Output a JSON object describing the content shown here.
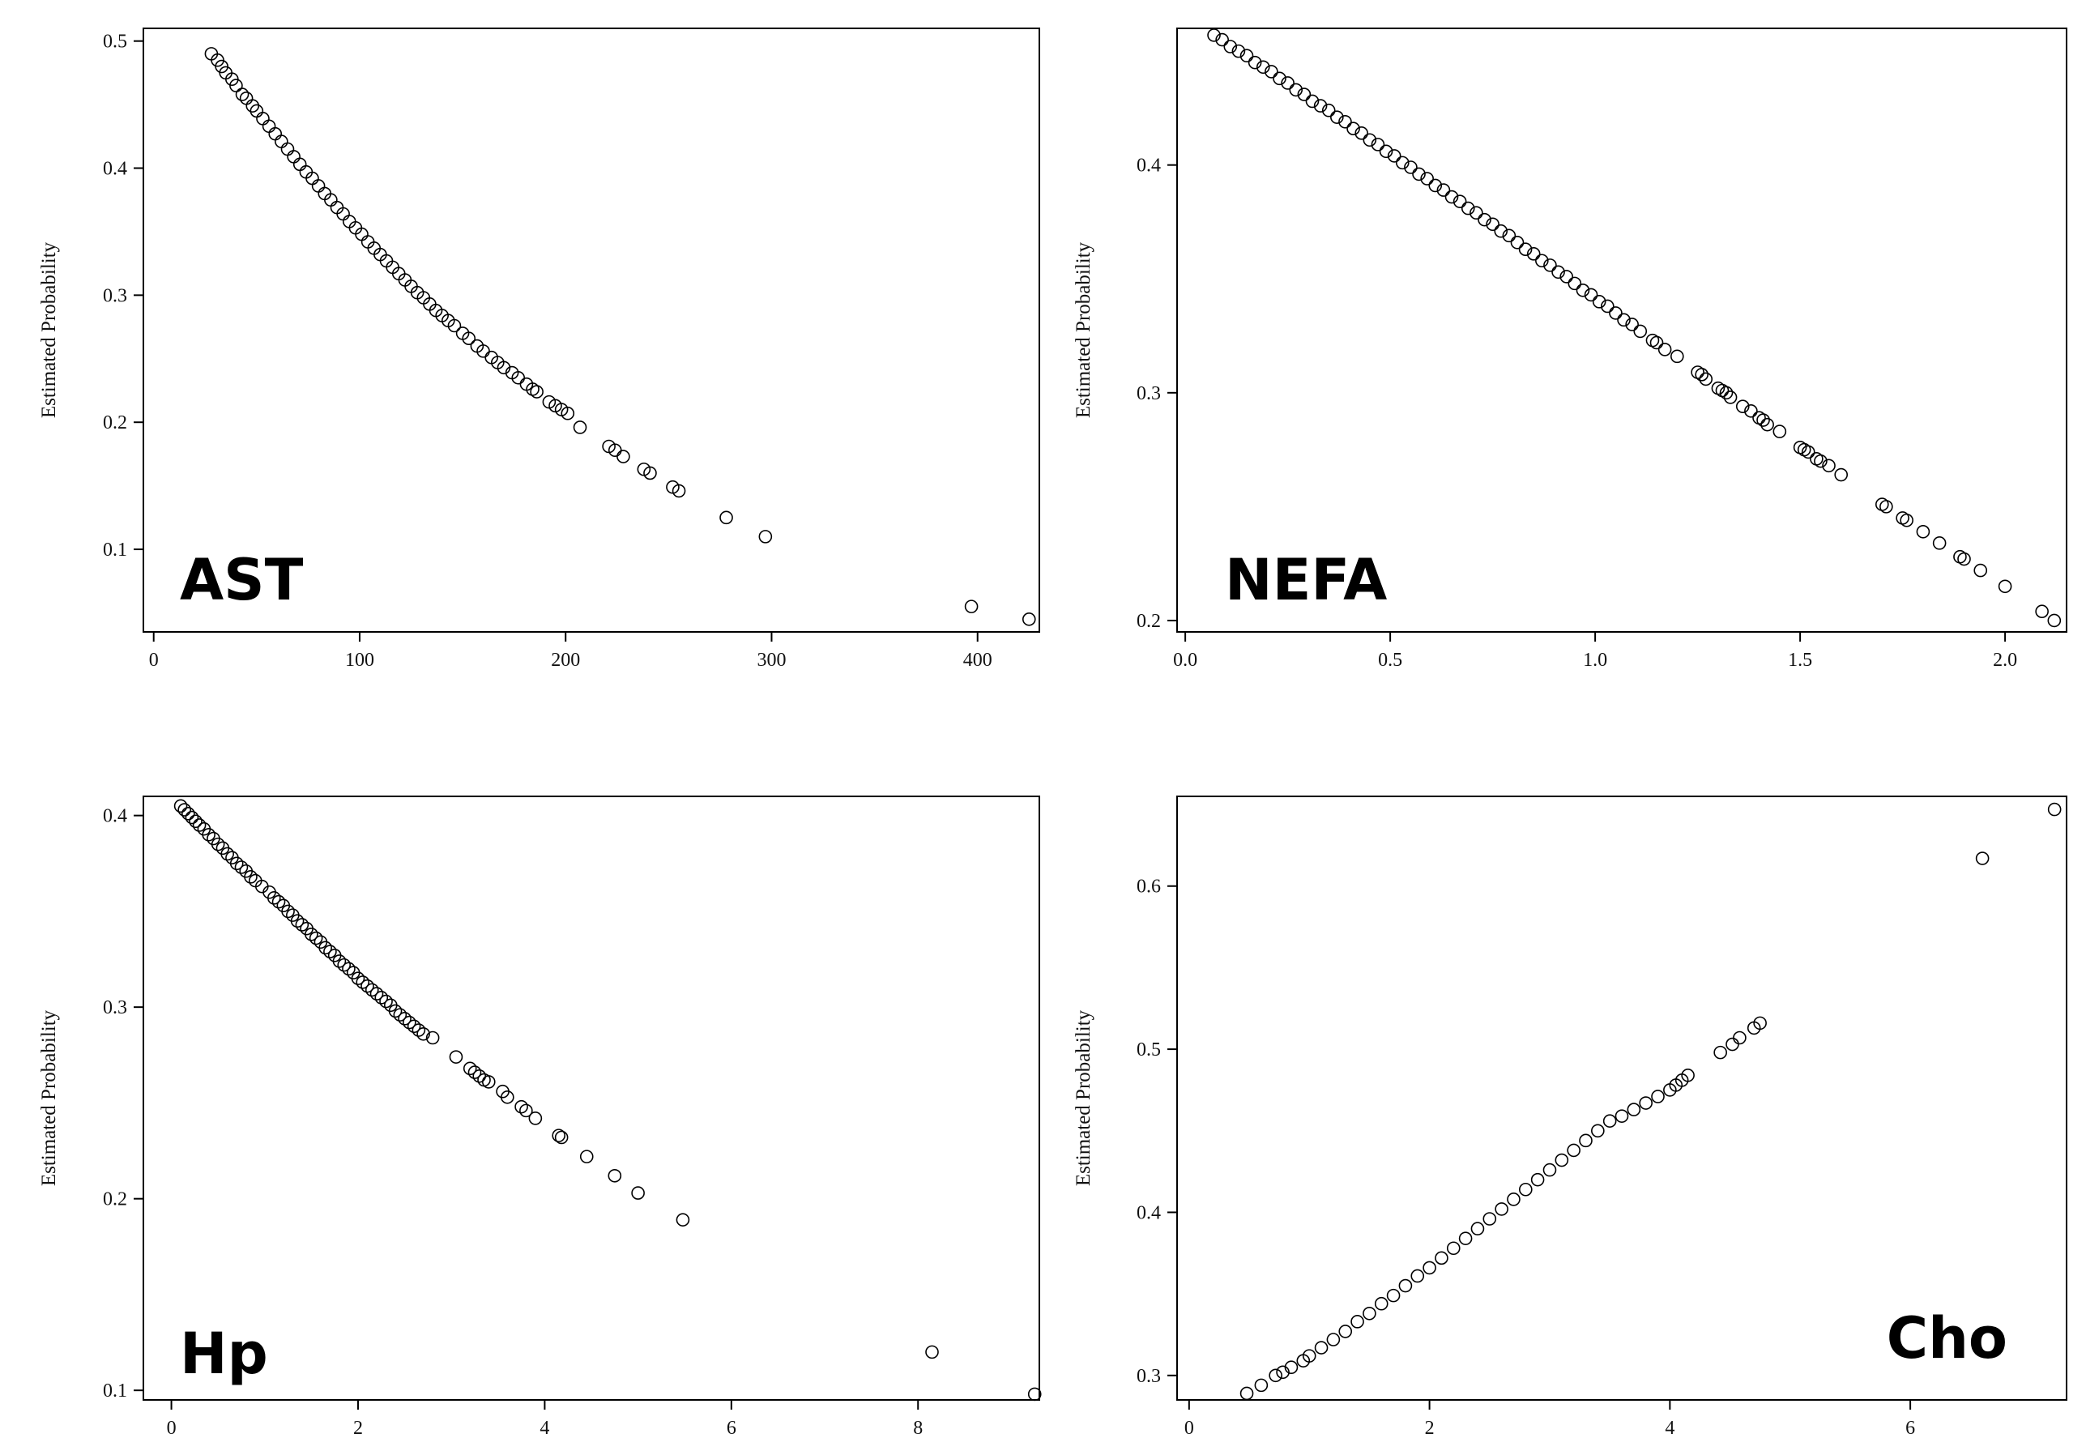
{
  "chart_data": [
    {
      "type": "scatter",
      "panel_label": "AST",
      "xlabel": "",
      "ylabel": "Estimated Probability",
      "xlim": [
        -5,
        430
      ],
      "ylim": [
        0.035,
        0.51
      ],
      "xticks": [
        0,
        100,
        200,
        300,
        400
      ],
      "yticks": [
        0.1,
        0.2,
        0.3,
        0.4,
        0.5
      ],
      "xtick_labels": [
        "0",
        "100",
        "200",
        "300",
        "400"
      ],
      "ytick_labels": [
        "0.1",
        "0.2",
        "0.3",
        "0.4",
        "0.5"
      ],
      "grid": false,
      "series": [
        {
          "x": [
            28,
            31,
            33,
            35,
            38,
            40,
            43,
            45,
            48,
            50,
            53,
            56,
            59,
            62,
            65,
            68,
            71,
            74,
            77,
            80,
            83,
            86,
            89,
            92,
            95,
            98,
            101,
            104,
            107,
            110,
            113,
            116,
            119,
            122,
            125,
            128,
            131,
            134,
            137,
            140,
            143,
            146,
            150,
            153,
            157,
            160,
            164,
            167,
            170,
            174,
            177,
            181,
            184,
            186,
            192,
            195,
            198,
            201,
            207,
            221,
            224,
            228,
            238,
            241,
            252,
            255,
            278,
            297,
            397,
            425
          ],
          "y": [
            0.49,
            0.485,
            0.48,
            0.475,
            0.47,
            0.465,
            0.458,
            0.455,
            0.449,
            0.445,
            0.439,
            0.433,
            0.427,
            0.421,
            0.415,
            0.409,
            0.403,
            0.397,
            0.392,
            0.386,
            0.38,
            0.375,
            0.369,
            0.364,
            0.358,
            0.353,
            0.348,
            0.342,
            0.337,
            0.332,
            0.327,
            0.322,
            0.317,
            0.312,
            0.307,
            0.302,
            0.298,
            0.293,
            0.288,
            0.284,
            0.28,
            0.276,
            0.27,
            0.266,
            0.26,
            0.256,
            0.251,
            0.247,
            0.243,
            0.239,
            0.235,
            0.23,
            0.226,
            0.224,
            0.216,
            0.213,
            0.21,
            0.207,
            0.196,
            0.181,
            0.178,
            0.173,
            0.163,
            0.16,
            0.149,
            0.146,
            0.125,
            0.11,
            0.055,
            0.045
          ]
        }
      ]
    },
    {
      "type": "scatter",
      "panel_label": "NEFA",
      "xlabel": "",
      "ylabel": "Estimated Probability",
      "xlim": [
        -0.02,
        2.15
      ],
      "ylim": [
        0.195,
        0.46
      ],
      "xticks": [
        0.0,
        0.5,
        1.0,
        1.5,
        2.0
      ],
      "yticks": [
        0.2,
        0.3,
        0.4
      ],
      "xtick_labels": [
        "0.0",
        "0.5",
        "1.0",
        "1.5",
        "2.0"
      ],
      "ytick_labels": [
        "0.2",
        "0.3",
        "0.4"
      ],
      "grid": false,
      "series": [
        {
          "x": [
            0.07,
            0.09,
            0.11,
            0.13,
            0.15,
            0.17,
            0.19,
            0.21,
            0.23,
            0.25,
            0.27,
            0.29,
            0.31,
            0.33,
            0.35,
            0.37,
            0.39,
            0.41,
            0.43,
            0.45,
            0.47,
            0.49,
            0.51,
            0.53,
            0.55,
            0.57,
            0.59,
            0.61,
            0.63,
            0.65,
            0.67,
            0.69,
            0.71,
            0.73,
            0.75,
            0.77,
            0.79,
            0.81,
            0.83,
            0.85,
            0.87,
            0.89,
            0.91,
            0.93,
            0.95,
            0.97,
            0.99,
            1.01,
            1.03,
            1.05,
            1.07,
            1.09,
            1.11,
            1.14,
            1.15,
            1.17,
            1.2,
            1.25,
            1.26,
            1.27,
            1.3,
            1.31,
            1.32,
            1.33,
            1.36,
            1.38,
            1.4,
            1.41,
            1.42,
            1.45,
            1.5,
            1.51,
            1.52,
            1.54,
            1.55,
            1.57,
            1.6,
            1.7,
            1.71,
            1.75,
            1.76,
            1.8,
            1.84,
            1.89,
            1.9,
            1.94,
            2.0,
            2.09,
            2.12
          ],
          "y": [
            0.457,
            0.455,
            0.452,
            0.45,
            0.448,
            0.445,
            0.443,
            0.441,
            0.438,
            0.436,
            0.433,
            0.431,
            0.428,
            0.426,
            0.424,
            0.421,
            0.419,
            0.416,
            0.414,
            0.411,
            0.409,
            0.406,
            0.404,
            0.401,
            0.399,
            0.396,
            0.394,
            0.391,
            0.389,
            0.386,
            0.384,
            0.381,
            0.379,
            0.376,
            0.374,
            0.371,
            0.369,
            0.366,
            0.363,
            0.361,
            0.358,
            0.356,
            0.353,
            0.351,
            0.348,
            0.345,
            0.343,
            0.34,
            0.338,
            0.335,
            0.332,
            0.33,
            0.327,
            0.323,
            0.322,
            0.319,
            0.316,
            0.309,
            0.308,
            0.306,
            0.302,
            0.301,
            0.3,
            0.298,
            0.294,
            0.292,
            0.289,
            0.288,
            0.286,
            0.283,
            0.276,
            0.275,
            0.274,
            0.271,
            0.27,
            0.268,
            0.264,
            0.251,
            0.25,
            0.245,
            0.244,
            0.239,
            0.234,
            0.228,
            0.227,
            0.222,
            0.215,
            0.204,
            0.2
          ]
        }
      ]
    },
    {
      "type": "scatter",
      "panel_label": "Hp",
      "xlabel": "",
      "ylabel": "Estimated Probability",
      "xlim": [
        -0.3,
        9.3
      ],
      "ylim": [
        0.095,
        0.41
      ],
      "xticks": [
        0,
        2,
        4,
        6,
        8
      ],
      "yticks": [
        0.1,
        0.2,
        0.3,
        0.4
      ],
      "xtick_labels": [
        "0",
        "2",
        "4",
        "6",
        "8"
      ],
      "ytick_labels": [
        "0.1",
        "0.2",
        "0.3",
        "0.4"
      ],
      "grid": false,
      "series": [
        {
          "x": [
            0.1,
            0.14,
            0.18,
            0.22,
            0.26,
            0.3,
            0.35,
            0.4,
            0.45,
            0.5,
            0.55,
            0.6,
            0.65,
            0.7,
            0.75,
            0.8,
            0.85,
            0.9,
            0.97,
            1.05,
            1.1,
            1.15,
            1.2,
            1.25,
            1.3,
            1.35,
            1.4,
            1.45,
            1.5,
            1.55,
            1.6,
            1.65,
            1.7,
            1.75,
            1.8,
            1.85,
            1.9,
            1.95,
            2.0,
            2.05,
            2.1,
            2.15,
            2.2,
            2.25,
            2.3,
            2.35,
            2.4,
            2.45,
            2.5,
            2.55,
            2.6,
            2.65,
            2.7,
            2.8,
            3.05,
            3.2,
            3.25,
            3.3,
            3.35,
            3.4,
            3.55,
            3.6,
            3.75,
            3.8,
            3.9,
            4.15,
            4.18,
            4.45,
            4.75,
            5.0,
            5.48,
            8.15,
            9.25
          ],
          "y": [
            0.405,
            0.403,
            0.401,
            0.399,
            0.397,
            0.395,
            0.393,
            0.39,
            0.388,
            0.385,
            0.383,
            0.38,
            0.378,
            0.375,
            0.373,
            0.371,
            0.368,
            0.366,
            0.363,
            0.36,
            0.357,
            0.355,
            0.353,
            0.35,
            0.348,
            0.345,
            0.343,
            0.341,
            0.338,
            0.336,
            0.334,
            0.331,
            0.329,
            0.327,
            0.324,
            0.322,
            0.32,
            0.318,
            0.315,
            0.313,
            0.311,
            0.309,
            0.307,
            0.305,
            0.303,
            0.301,
            0.298,
            0.296,
            0.294,
            0.292,
            0.29,
            0.288,
            0.286,
            0.284,
            0.274,
            0.268,
            0.266,
            0.264,
            0.262,
            0.261,
            0.256,
            0.253,
            0.248,
            0.246,
            0.242,
            0.233,
            0.232,
            0.222,
            0.212,
            0.203,
            0.189,
            0.12,
            0.098
          ]
        }
      ]
    },
    {
      "type": "scatter",
      "panel_label": "Cho",
      "xlabel": "",
      "ylabel": "Estimated Probability",
      "xlim": [
        -0.1,
        7.3
      ],
      "ylim": [
        0.285,
        0.655
      ],
      "xticks": [
        0,
        2,
        4,
        6
      ],
      "yticks": [
        0.3,
        0.4,
        0.5,
        0.6
      ],
      "xtick_labels": [
        "0",
        "2",
        "4",
        "6"
      ],
      "ytick_labels": [
        "0.3",
        "0.4",
        "0.5",
        "0.6"
      ],
      "grid": false,
      "series": [
        {
          "x": [
            0.48,
            0.6,
            0.72,
            0.78,
            0.85,
            0.95,
            1.0,
            1.1,
            1.2,
            1.3,
            1.4,
            1.5,
            1.6,
            1.7,
            1.8,
            1.9,
            2.0,
            2.1,
            2.2,
            2.3,
            2.4,
            2.5,
            2.6,
            2.7,
            2.8,
            2.9,
            3.0,
            3.1,
            3.2,
            3.3,
            3.4,
            3.5,
            3.6,
            3.7,
            3.8,
            3.9,
            4.0,
            4.05,
            4.1,
            4.15,
            4.42,
            4.52,
            4.58,
            4.7,
            4.75,
            6.6,
            7.2
          ],
          "y": [
            0.289,
            0.294,
            0.3,
            0.302,
            0.305,
            0.309,
            0.312,
            0.317,
            0.322,
            0.327,
            0.333,
            0.338,
            0.344,
            0.349,
            0.355,
            0.361,
            0.366,
            0.372,
            0.378,
            0.384,
            0.39,
            0.396,
            0.402,
            0.408,
            0.414,
            0.42,
            0.426,
            0.432,
            0.438,
            0.444,
            0.45,
            0.456,
            0.459,
            0.463,
            0.467,
            0.471,
            0.475,
            0.478,
            0.481,
            0.484,
            0.498,
            0.503,
            0.507,
            0.513,
            0.516,
            0.617,
            0.647
          ]
        }
      ]
    }
  ]
}
